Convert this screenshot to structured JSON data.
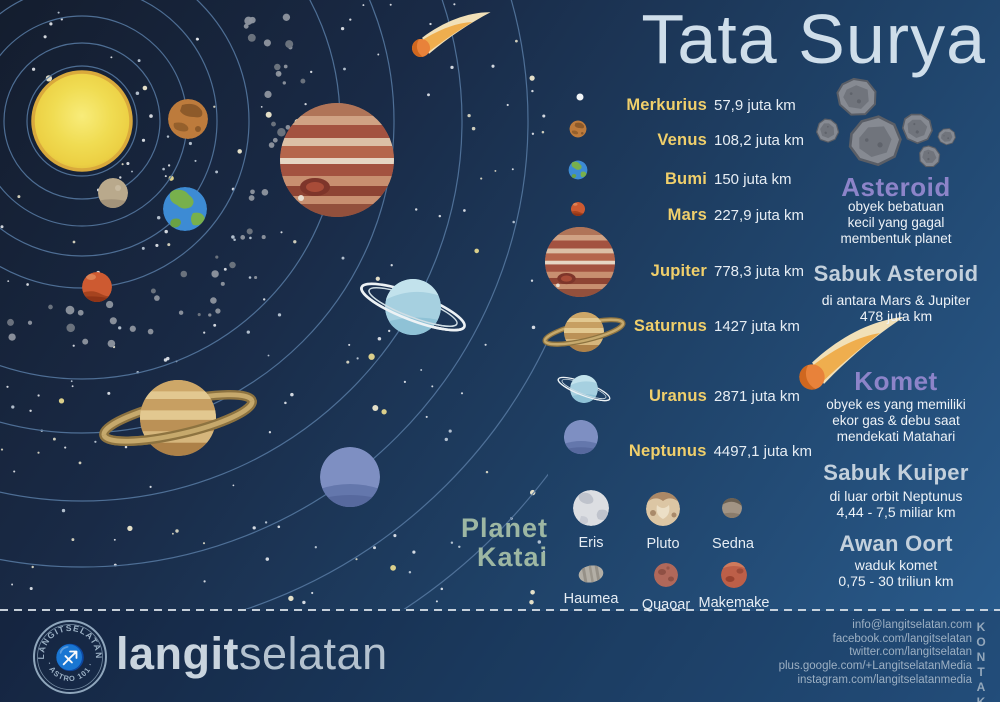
{
  "title": "Tata Surya",
  "planet_list": {
    "rows": [
      {
        "name": "Merkurius",
        "distance": "57,9 juta km"
      },
      {
        "name": "Venus",
        "distance": "108,2 juta km"
      },
      {
        "name": "Bumi",
        "distance": "150 juta km"
      },
      {
        "name": "Mars",
        "distance": "227,9 juta km"
      },
      {
        "name": "Jupiter",
        "distance": "778,3 juta km"
      },
      {
        "name": "Saturnus",
        "distance": "1427 juta km"
      },
      {
        "name": "Uranus",
        "distance": "2871 juta km"
      },
      {
        "name": "Neptunus",
        "distance": "4497,1 juta km"
      }
    ]
  },
  "sections": {
    "asteroid": {
      "heading": "Asteroid",
      "lines": [
        "obyek bebatuan",
        "kecil yang gagal",
        "membentuk planet"
      ]
    },
    "sabuk_asteroid": {
      "heading": "Sabuk Asteroid",
      "lines": [
        "di antara Mars & Jupiter",
        "478 juta km"
      ]
    },
    "komet": {
      "heading": "Komet",
      "lines": [
        "obyek es yang memiliki",
        "ekor gas & debu saat",
        "mendekati Matahari"
      ]
    },
    "sabuk_kuiper": {
      "heading": "Sabuk Kuiper",
      "lines": [
        "di luar orbit Neptunus",
        "4,44 - 7,5 miliar km"
      ]
    },
    "awan_oort": {
      "heading": "Awan Oort",
      "lines": [
        "waduk komet",
        "0,75 - 30 triliun km"
      ]
    }
  },
  "dwarf_section": {
    "heading": [
      "Planet",
      "Katai"
    ],
    "planets": [
      "Eris",
      "Pluto",
      "Sedna",
      "Haumea",
      "Quaoar",
      "Makemake"
    ]
  },
  "footer": {
    "brand_bold": "langit",
    "brand_light": "selatan",
    "badge_top": "LANGITSELATAN",
    "badge_bottom": "· ASTRO 101 ·",
    "badge_glyph": "♐",
    "kontak_label": "KONTAK",
    "contacts": [
      "info@langitselatan.com",
      "facebook.com/langitselatan",
      "twitter.com/langitselatan",
      "plus.google.com/+LangitselatanMedia",
      "instagram.com/langitselatanmedia"
    ]
  },
  "colors": {
    "accent_gold": "#f0cf6b",
    "accent_purple": "#8d84c9",
    "accent_steel": "#c3d0dc",
    "accent_sage": "#9db7a3",
    "background_dark": "#141d2e",
    "background_light": "#2a5d8f",
    "title_text": "#cfdeea"
  }
}
